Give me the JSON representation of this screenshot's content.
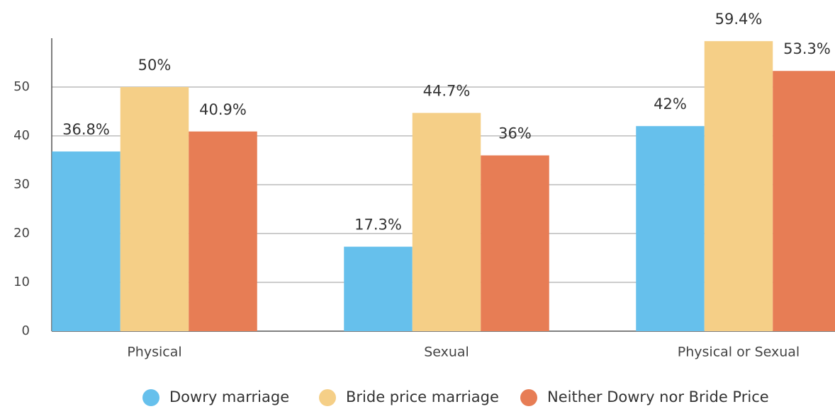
{
  "chart_data": {
    "type": "bar",
    "categories": [
      "Physical",
      "Sexual",
      "Physical or Sexual"
    ],
    "series": [
      {
        "name": "Dowry marriage",
        "color": "#66c0ec",
        "values": [
          36.8,
          17.3,
          42
        ],
        "value_labels": [
          "36.8%",
          "17.3%",
          "42%"
        ]
      },
      {
        "name": "Bride price marriage",
        "color": "#f5cf87",
        "values": [
          50,
          44.7,
          59.4
        ],
        "value_labels": [
          "50%",
          "44.7%",
          "59.4%"
        ]
      },
      {
        "name": "Neither Dowry nor Bride Price",
        "color": "#e77d55",
        "values": [
          40.9,
          36,
          53.3
        ],
        "value_labels": [
          "40.9%",
          "36%",
          "53.3%"
        ]
      }
    ],
    "ylim": [
      0,
      60
    ],
    "yticks": [
      0,
      10,
      20,
      30,
      40,
      50
    ],
    "grid": true,
    "legend": "bottom"
  }
}
